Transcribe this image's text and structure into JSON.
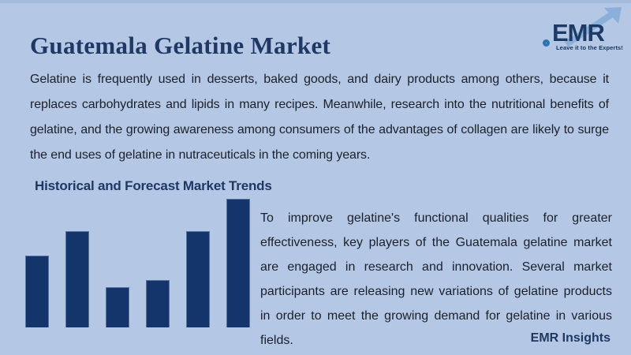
{
  "header": {
    "title": "Guatemala Gelatine Market",
    "logo": {
      "text": "EMR",
      "tagline": "Leave it to the Experts!"
    }
  },
  "intro_paragraph": "Gelatine is frequently used in desserts, baked goods, and dairy products among others, because it replaces carbohydrates and lipids in many recipes. Meanwhile, research into the nutritional benefits of gelatine, and the growing awareness among consumers of the advantages of collagen are likely to surge the end uses of gelatine in nutraceuticals in the coming years.",
  "section": {
    "heading": "Historical and Forecast Market Trends",
    "body": "To improve gelatine's functional qualities for greater effectiveness, key players of the Guatemala gelatine market are engaged in research and innovation. Several market participants are releasing new variations of gelatine products in order to meet the growing demand for gelatine in various fields."
  },
  "chart_data": {
    "type": "bar",
    "title": "Historical and Forecast Market Trends",
    "values": [
      56,
      75,
      31,
      37,
      75,
      100
    ],
    "ylim": [
      0,
      100
    ],
    "grid": false,
    "axis_labels_visible": false,
    "legend": "none",
    "bar_color": "#14356b",
    "note": "decorative trend bars, no tick labels shown"
  },
  "footer": {
    "insights_label": "EMR Insights"
  },
  "colors": {
    "background": "#b4c7e4",
    "accent_navy": "#1f3864",
    "bar_navy": "#14356b",
    "body_text": "#1c202a",
    "logo_arrow": "#8ab0d9",
    "logo_ring": "#2d70b3"
  }
}
